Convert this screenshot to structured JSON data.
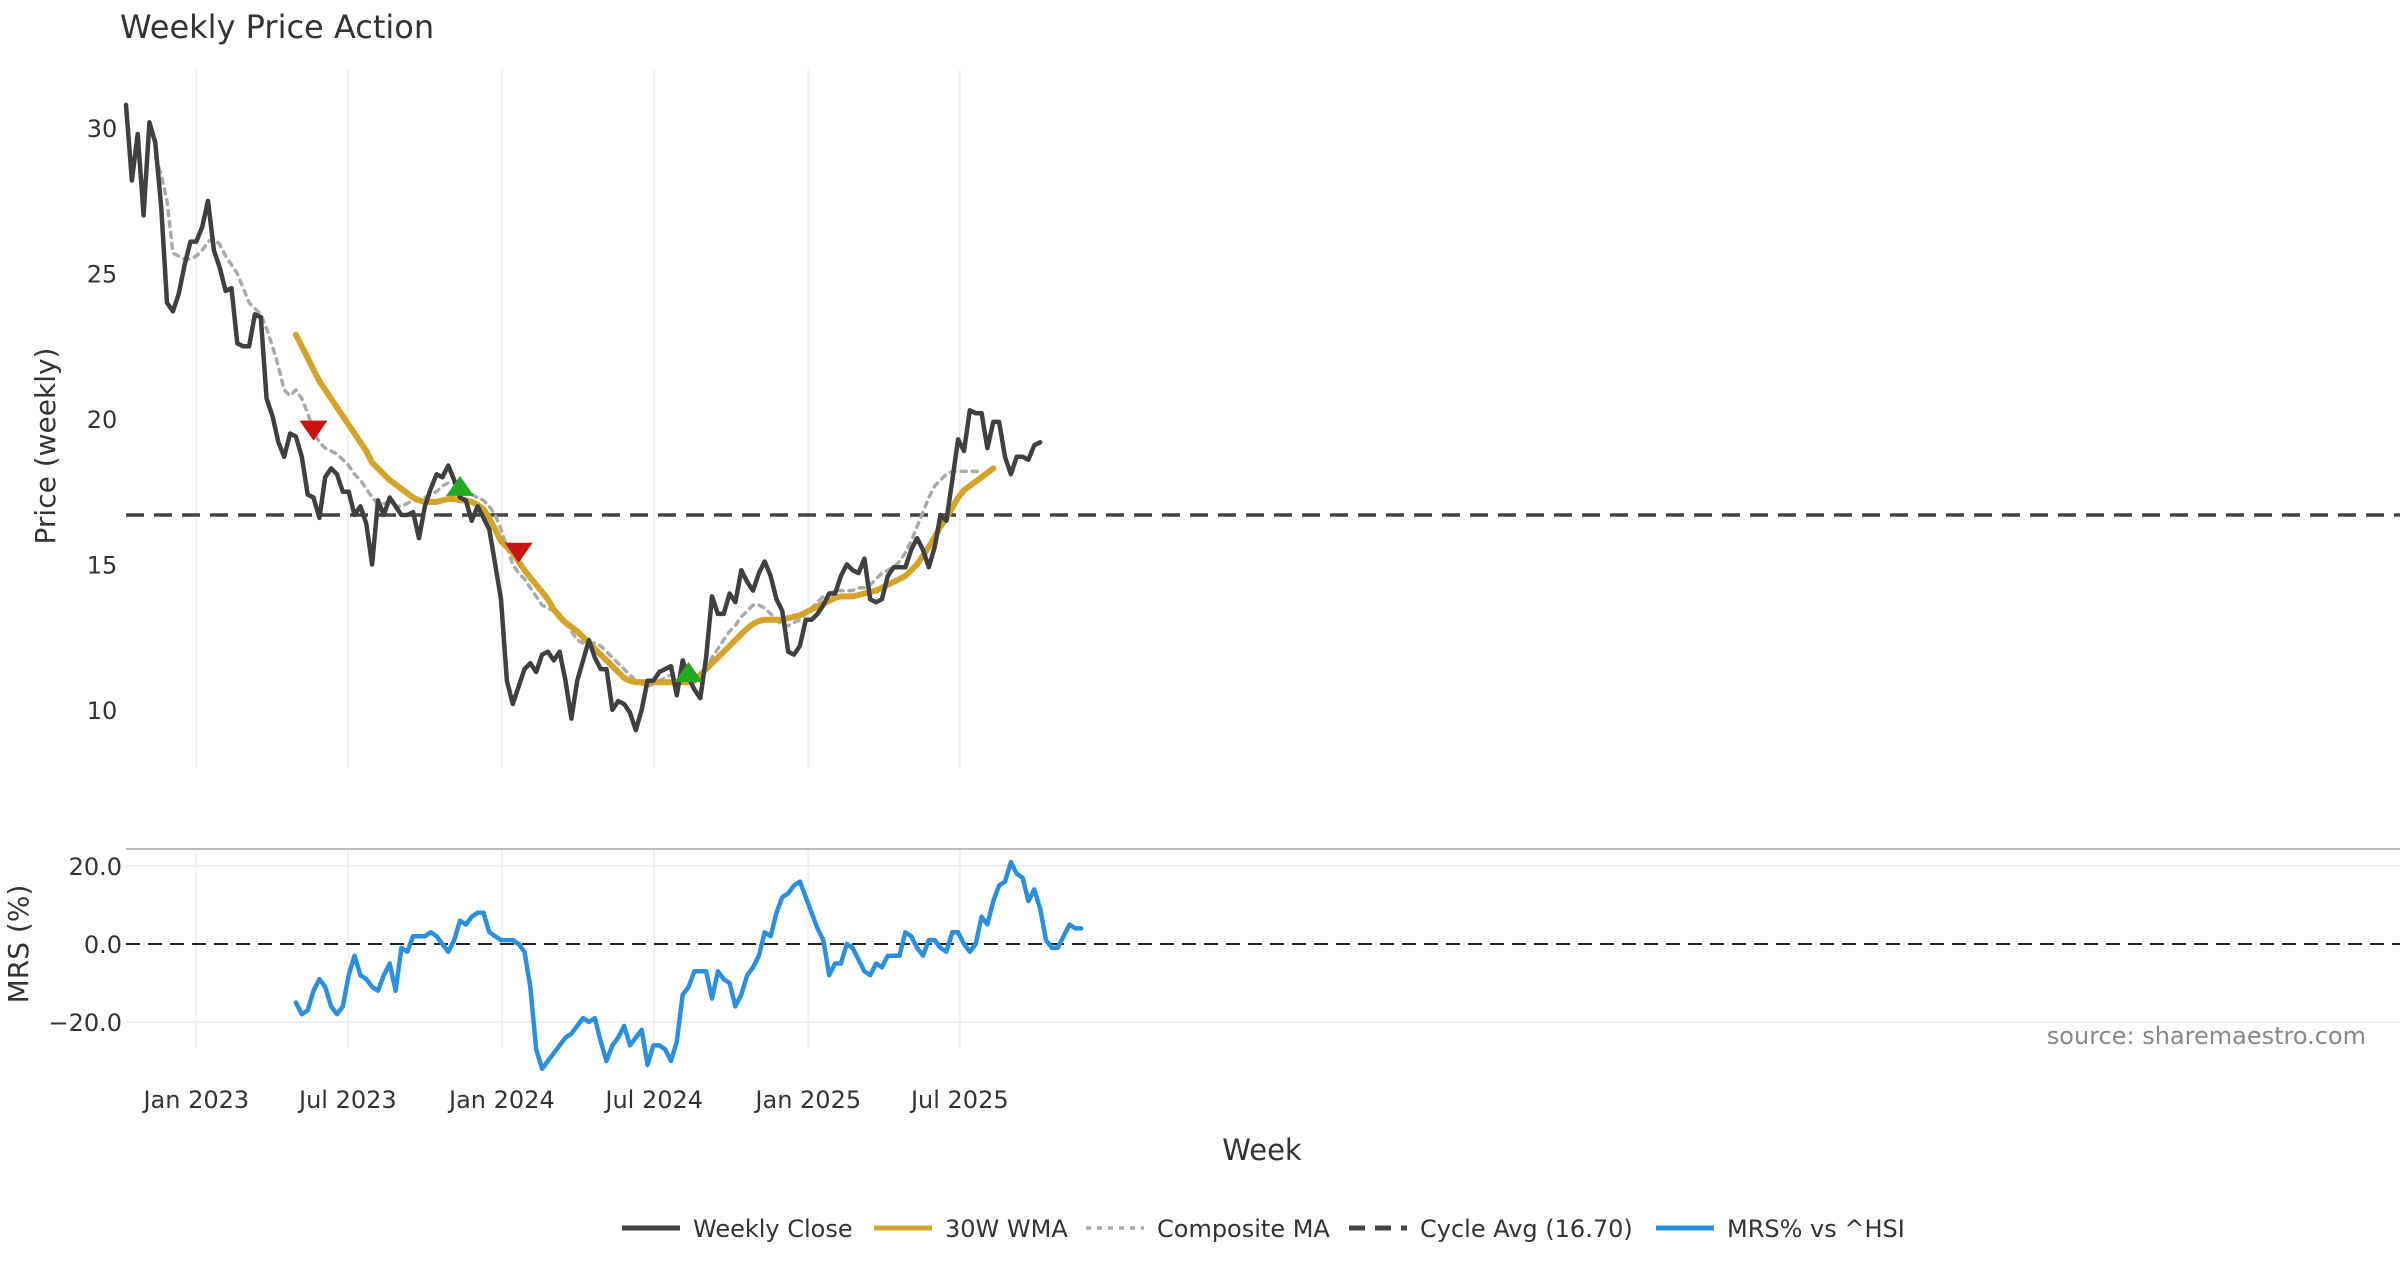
{
  "chart_data": [
    {
      "type": "line",
      "panel": "price",
      "title": "Weekly Price Action",
      "ylabel": "Price (weekly)",
      "ylim": [
        8,
        32
      ],
      "yticks": [
        10,
        15,
        20,
        25,
        30
      ],
      "x_start": "2022-10-09",
      "x_step_days": 7,
      "x_range": [
        "2022-10-09",
        "2025-10-27"
      ],
      "hline": {
        "name": "Cycle Avg (16.70)",
        "value": 16.7,
        "color": "#444444"
      },
      "series": [
        {
          "name": "Weekly Close",
          "color": "#404040",
          "start_index": 0,
          "values": [
            30.8,
            28.2,
            29.8,
            27.0,
            30.2,
            29.5,
            27.3,
            24.0,
            23.7,
            24.3,
            25.3,
            26.1,
            26.1,
            26.6,
            27.5,
            25.8,
            25.2,
            24.4,
            24.5,
            22.6,
            22.5,
            22.5,
            23.6,
            23.5,
            20.7,
            20.1,
            19.2,
            18.7,
            19.5,
            19.4,
            18.7,
            17.4,
            17.3,
            16.6,
            18.0,
            18.3,
            18.1,
            17.5,
            17.5,
            16.7,
            17.0,
            16.4,
            15.0,
            17.2,
            16.7,
            17.3,
            17.0,
            16.7,
            16.7,
            16.8,
            15.9,
            17.0,
            17.6,
            18.1,
            18.0,
            18.4,
            17.9,
            17.3,
            17.2,
            16.5,
            17.0,
            16.6,
            16.2,
            15.0,
            13.8,
            11.0,
            10.2,
            10.8,
            11.4,
            11.6,
            11.3,
            11.9,
            12.0,
            11.7,
            12.0,
            11.0,
            9.7,
            11.0,
            11.7,
            12.4,
            11.8,
            11.4,
            11.4,
            10.0,
            10.3,
            10.2,
            9.9,
            9.3,
            10.0,
            11.0,
            11.0,
            11.3,
            11.4,
            11.5,
            10.5,
            11.7,
            11.1,
            10.7,
            10.4,
            11.8,
            13.9,
            13.3,
            13.3,
            14.0,
            13.7,
            14.8,
            14.4,
            14.1,
            14.7,
            15.1,
            14.6,
            13.8,
            13.4,
            12.0,
            11.9,
            12.2,
            13.1,
            13.1,
            13.3,
            13.6,
            14.0,
            14.0,
            14.6,
            15.0,
            14.8,
            14.7,
            15.2,
            13.8,
            13.7,
            13.8,
            14.6,
            14.9,
            14.9,
            14.9,
            15.5,
            15.9,
            15.5,
            14.9,
            15.6,
            16.7,
            16.5,
            17.9,
            19.3,
            18.9,
            20.3,
            20.2,
            20.2,
            19.0,
            19.9,
            19.9,
            18.7,
            18.1,
            18.7,
            18.7,
            18.6,
            19.1,
            19.2
          ]
        },
        {
          "name": "30W WMA",
          "color": "#D4A42A",
          "start_index": 29,
          "values": [
            22.9,
            22.5,
            22.1,
            21.7,
            21.3,
            21.0,
            20.7,
            20.4,
            20.1,
            19.8,
            19.5,
            19.2,
            18.9,
            18.5,
            18.3,
            18.1,
            17.9,
            17.75,
            17.6,
            17.45,
            17.3,
            17.2,
            17.15,
            17.15,
            17.15,
            17.2,
            17.25,
            17.25,
            17.2,
            17.2,
            17.15,
            17.05,
            16.9,
            16.6,
            16.2,
            15.8,
            15.6,
            15.4,
            15.1,
            14.8,
            14.55,
            14.3,
            14.05,
            13.8,
            13.45,
            13.2,
            13.0,
            12.85,
            12.7,
            12.5,
            12.3,
            12.1,
            11.9,
            11.7,
            11.5,
            11.3,
            11.1,
            11.0,
            10.95,
            10.95,
            10.95,
            10.95,
            10.95,
            10.95,
            10.95,
            10.95,
            10.95,
            10.95,
            11.0,
            11.2,
            11.4,
            11.6,
            11.8,
            12.0,
            12.2,
            12.4,
            12.6,
            12.8,
            12.95,
            13.05,
            13.1,
            13.1,
            13.1,
            13.1,
            13.15,
            13.2,
            13.25,
            13.35,
            13.45,
            13.55,
            13.65,
            13.75,
            13.85,
            13.9,
            13.9,
            13.9,
            13.95,
            14.0,
            14.05,
            14.1,
            14.2,
            14.3,
            14.4,
            14.5,
            14.6,
            14.8,
            15.0,
            15.3,
            15.6,
            15.95,
            16.3,
            16.6,
            16.95,
            17.3,
            17.55,
            17.7,
            17.85,
            18.0,
            18.15,
            18.3
          ]
        },
        {
          "name": "Composite MA",
          "color": "#AAAAAA",
          "start_index": 5,
          "values": [
            29.0,
            28.4,
            27.5,
            25.7,
            25.6,
            25.5,
            25.5,
            25.6,
            25.8,
            26.1,
            26.2,
            26.0,
            25.6,
            25.3,
            25.0,
            24.5,
            24.0,
            23.8,
            23.6,
            23.1,
            22.5,
            21.8,
            21.0,
            20.8,
            21.0,
            20.7,
            20.2,
            19.6,
            19.2,
            19.0,
            18.9,
            18.8,
            18.6,
            18.4,
            18.1,
            17.9,
            17.6,
            17.3,
            17.1,
            17.1,
            17.1,
            17.0,
            17.0,
            17.1,
            17.2,
            17.2,
            17.3,
            17.4,
            17.5,
            17.7,
            17.8,
            17.8,
            17.7,
            17.6,
            17.4,
            17.3,
            17.2,
            17.0,
            16.7,
            16.2,
            15.6,
            15.0,
            14.7,
            14.5,
            14.2,
            13.9,
            13.6,
            13.5,
            13.4,
            13.3,
            13.0,
            12.7,
            12.4,
            12.3,
            12.3,
            12.3,
            12.2,
            12.0,
            11.8,
            11.6,
            11.4,
            11.2,
            11.0,
            10.9,
            10.8,
            10.9,
            11.0,
            11.1,
            11.2,
            11.2,
            11.2,
            11.1,
            11.0,
            11.0,
            11.4,
            11.8,
            12.1,
            12.4,
            12.7,
            12.9,
            13.2,
            13.4,
            13.6,
            13.6,
            13.5,
            13.3,
            13.1,
            12.9,
            12.9,
            13.0,
            13.1,
            13.3,
            13.5,
            13.7,
            13.9,
            14.0,
            14.1,
            14.1,
            14.1,
            14.1,
            14.2,
            14.2,
            14.3,
            14.5,
            14.7,
            14.8,
            14.9,
            15.1,
            15.4,
            15.8,
            16.3,
            16.8,
            17.3,
            17.7,
            17.9,
            18.1,
            18.2,
            18.2,
            18.2,
            18.2,
            18.2,
            18.2
          ]
        }
      ],
      "markers": [
        {
          "type": "sell",
          "index": 32,
          "value": 19.6,
          "color": "#CC1111"
        },
        {
          "type": "buy",
          "index": 57,
          "value": 17.7,
          "color": "#22AA22"
        },
        {
          "type": "sell",
          "index": 67,
          "value": 15.4,
          "color": "#CC1111"
        },
        {
          "type": "buy",
          "index": 96,
          "value": 11.3,
          "color": "#22AA22"
        }
      ]
    },
    {
      "type": "line",
      "panel": "mrs",
      "ylabel": "MRS (%)",
      "ylim": [
        -28,
        24
      ],
      "yticks": [
        -20.0,
        0.0,
        20.0
      ],
      "ytick_labels": [
        "−20.0",
        "0.0",
        "20.0"
      ],
      "xlabel": "Week",
      "xtick_labels": [
        "Jan 2023",
        "Jul 2023",
        "Jan 2024",
        "Jul 2024",
        "Jan 2025",
        "Jul 2025"
      ],
      "xtick_dates": [
        "2023-01-01",
        "2023-07-01",
        "2024-01-01",
        "2024-07-01",
        "2025-01-01",
        "2025-07-01"
      ],
      "hline": {
        "value": 0,
        "color": "#222222"
      },
      "series": [
        {
          "name": "MRS% vs ^HSI",
          "color": "#2B8FE0",
          "start_index": 29,
          "values": [
            -15,
            -18,
            -17,
            -12,
            -9,
            -11,
            -16,
            -18,
            -16,
            -8,
            -3,
            -8,
            -9,
            -11,
            -12,
            -8,
            -5,
            -12,
            -1,
            -2,
            2,
            2,
            2,
            3,
            2,
            0,
            -2,
            1,
            6,
            5,
            7,
            8,
            8,
            3,
            2,
            1,
            1,
            1,
            0,
            -2,
            -11,
            -27,
            -32,
            -30,
            -28,
            -26,
            -24,
            -23,
            -21,
            -19,
            -20,
            -19,
            -25,
            -30,
            -26,
            -24,
            -21,
            -26,
            -24,
            -22,
            -31,
            -26,
            -26,
            -27,
            -30,
            -25,
            -13,
            -11,
            -7,
            -7,
            -7,
            -14,
            -7,
            -9,
            -10,
            -16,
            -13,
            -8,
            -6,
            -3,
            3,
            2,
            8,
            12,
            13,
            15,
            16,
            12,
            8,
            4,
            1,
            -8,
            -5,
            -5,
            0,
            -1,
            -4,
            -7,
            -8,
            -5,
            -6,
            -3,
            -3,
            -3,
            3,
            2,
            -1,
            -3,
            1,
            1,
            -1,
            -2,
            3,
            3,
            0,
            -2,
            0,
            7,
            5,
            11,
            15,
            16,
            21,
            18,
            17,
            11,
            14,
            9,
            1,
            -1,
            -1,
            2,
            5,
            4,
            4
          ]
        }
      ]
    }
  ],
  "legend": {
    "items": [
      {
        "label": "Weekly Close",
        "style": "solid",
        "color": "#404040"
      },
      {
        "label": "30W WMA",
        "style": "solid",
        "color": "#D4A42A"
      },
      {
        "label": "Composite MA",
        "style": "dotted",
        "color": "#AAAAAA"
      },
      {
        "label": "Cycle Avg (16.70)",
        "style": "dashed",
        "color": "#444444"
      },
      {
        "label": "MRS% vs ^HSI",
        "style": "solid",
        "color": "#2B8FE0"
      }
    ]
  },
  "source_note": "source: sharemaestro.com"
}
